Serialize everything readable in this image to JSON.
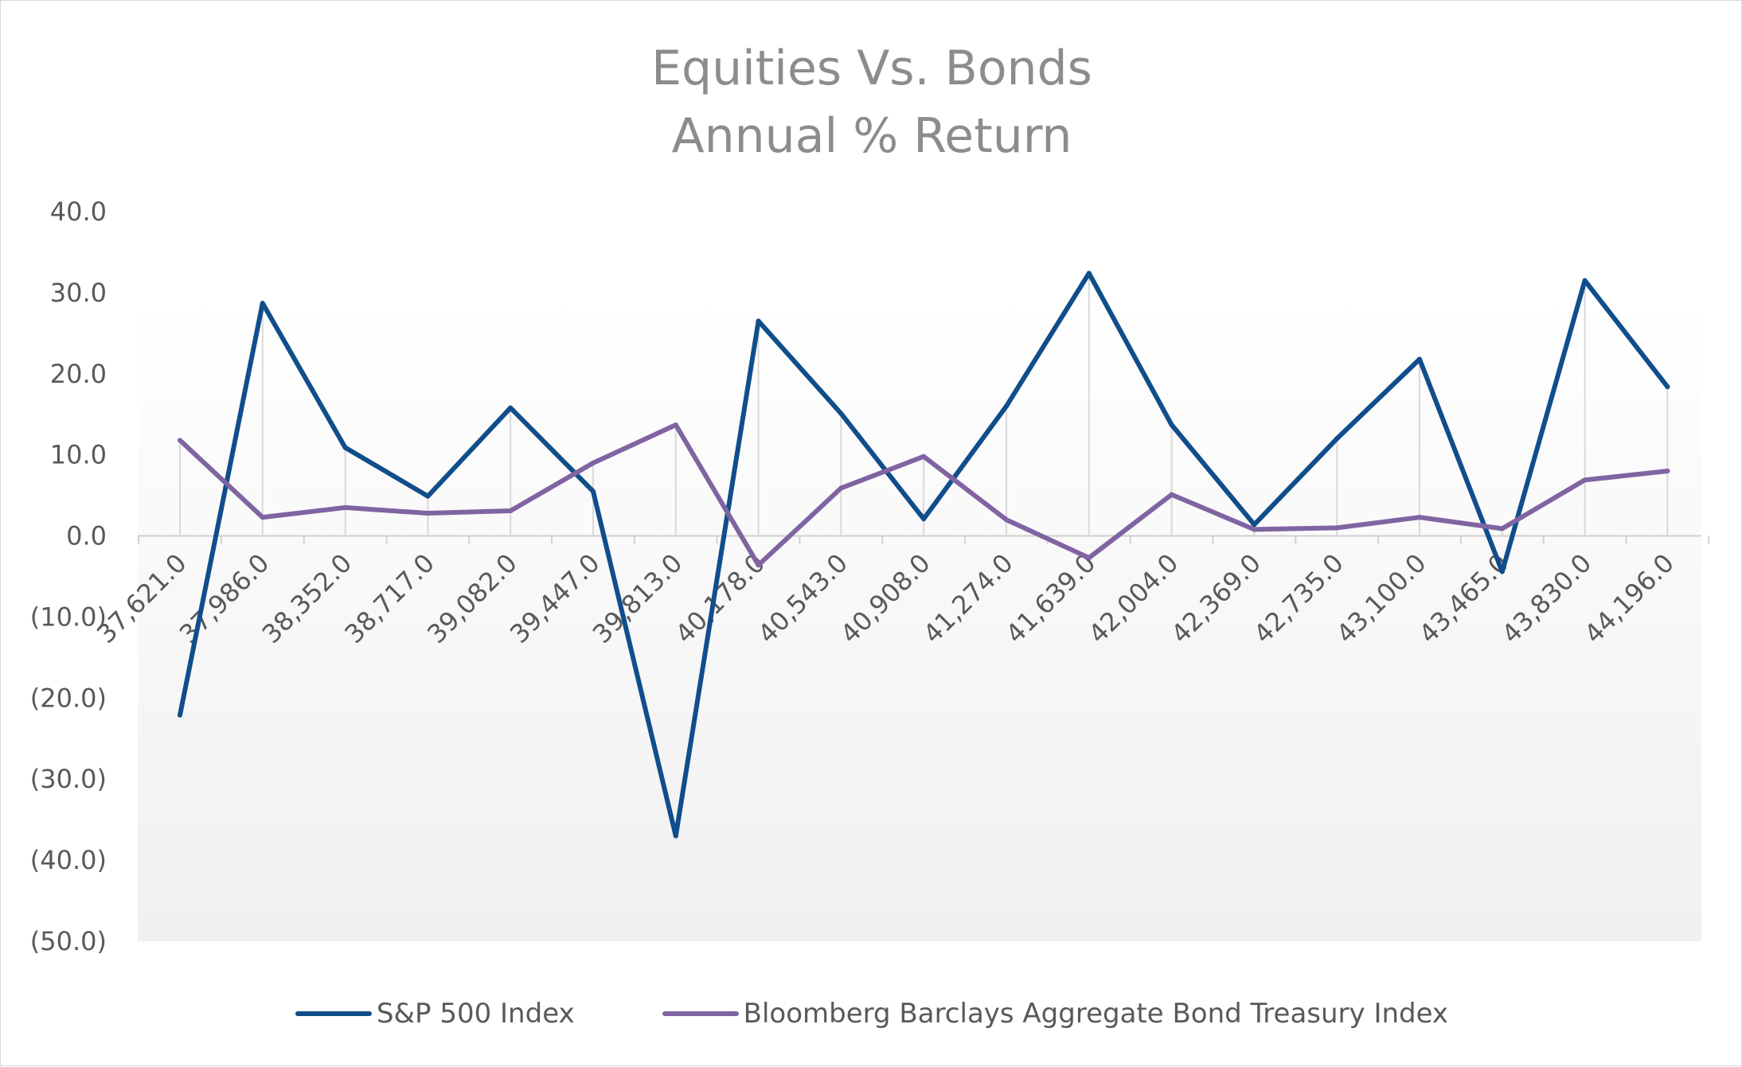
{
  "chart_data": {
    "type": "line",
    "title_lines": [
      "Equities Vs. Bonds",
      "Annual % Return"
    ],
    "x": [
      "37,621.0",
      "37,986.0",
      "38,352.0",
      "38,717.0",
      "39,082.0",
      "39,447.0",
      "39,813.0",
      "40,178.0",
      "40,543.0",
      "40,908.0",
      "41,274.0",
      "41,639.0",
      "42,004.0",
      "42,369.0",
      "42,735.0",
      "43,100.0",
      "43,465.0",
      "43,830.0",
      "44,196.0"
    ],
    "y_tick_labels": [
      "40.0",
      "30.0",
      "20.0",
      "10.0",
      "0.0",
      "(10.0)",
      "(20.0)",
      "(30.0)",
      "(40.0)",
      "(50.0)"
    ],
    "ylim": [
      -50,
      40
    ],
    "y_step": 10,
    "grid": "vertical drop lines at each category",
    "legend_position": "bottom",
    "series": [
      {
        "name": "S&P 500 Index",
        "color": "#104e8b",
        "values": [
          -22.1,
          28.7,
          10.9,
          4.9,
          15.8,
          5.5,
          -37.0,
          26.5,
          15.1,
          2.1,
          16.0,
          32.4,
          13.7,
          1.4,
          12.0,
          21.8,
          -4.4,
          31.5,
          18.4
        ]
      },
      {
        "name": "Bloomberg Barclays Aggregate Bond Treasury Index",
        "color": "#8064a2",
        "values": [
          11.8,
          2.3,
          3.5,
          2.8,
          3.1,
          9.0,
          13.7,
          -3.6,
          5.9,
          9.8,
          2.0,
          -2.7,
          5.1,
          0.8,
          1.0,
          2.3,
          0.9,
          6.9,
          8.0
        ]
      }
    ]
  }
}
